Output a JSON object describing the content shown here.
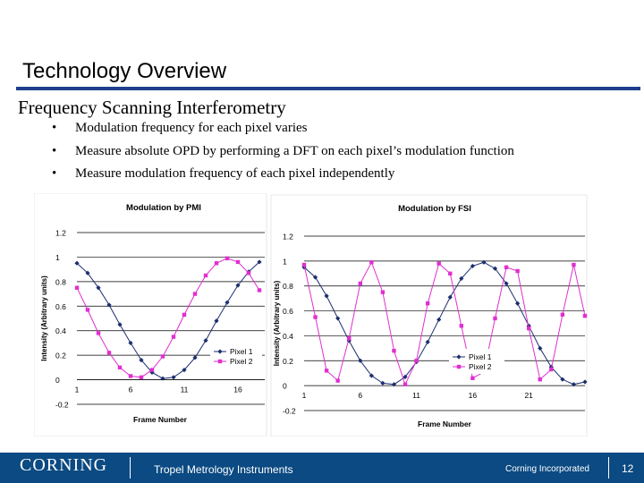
{
  "slide": {
    "title": "Technology Overview",
    "subtitle": "Frequency Scanning Interferometry",
    "bullets": [
      "Modulation frequency for each pixel varies",
      "Measure absolute OPD by performing a DFT on each pixel’s modulation function",
      "Measure modulation frequency of each pixel independently"
    ],
    "accent_color": "#1f3f8c",
    "footer_bg": "#0b4a82"
  },
  "footer": {
    "brand": "CORNING",
    "division": "Tropel Metrology Instruments",
    "company": "Corning Incorporated",
    "page_number": "12"
  },
  "chart_data": [
    {
      "type": "line",
      "title": "Modulation by PMI",
      "xlabel": "Frame Number",
      "ylabel": "Intensity (Arbitrary units)",
      "ylim": [
        -0.2,
        1.2
      ],
      "yticks": [
        "1.2",
        "1",
        "0.8",
        "0.6",
        "0.4",
        "0.2",
        "0",
        "-0.2"
      ],
      "xticks": [
        "1",
        "6",
        "11",
        "16"
      ],
      "xlim": [
        1,
        18.5
      ],
      "legend": "bottom-right",
      "series": [
        {
          "name": "Pixel 1",
          "color": "#1c2f6e",
          "marker": "diamond",
          "x": [
            1,
            2,
            3,
            4,
            5,
            6,
            7,
            8,
            9,
            10,
            11,
            12,
            13,
            14,
            15,
            16,
            17,
            18
          ],
          "y": [
            0.95,
            0.87,
            0.75,
            0.61,
            0.45,
            0.3,
            0.16,
            0.06,
            0.01,
            0.02,
            0.08,
            0.18,
            0.32,
            0.48,
            0.63,
            0.77,
            0.88,
            0.96
          ]
        },
        {
          "name": "Pixel 2",
          "color": "#e02fd0",
          "marker": "square",
          "x": [
            1,
            2,
            3,
            4,
            5,
            6,
            7,
            8,
            9,
            10,
            11,
            12,
            13,
            14,
            15,
            16,
            17,
            18
          ],
          "y": [
            0.75,
            0.57,
            0.38,
            0.22,
            0.1,
            0.03,
            0.02,
            0.08,
            0.19,
            0.35,
            0.53,
            0.7,
            0.85,
            0.95,
            0.99,
            0.96,
            0.87,
            0.73
          ]
        }
      ]
    },
    {
      "type": "line",
      "title": "Modulation by FSI",
      "xlabel": "Frame Number",
      "ylabel": "Intensity (Arbitrary units)",
      "ylim": [
        -0.2,
        1.2
      ],
      "yticks": [
        "1.2",
        "1",
        "0.8",
        "0.6",
        "0.4",
        "0.2",
        "0",
        "-0.2"
      ],
      "xticks": [
        "1",
        "6",
        "11",
        "16",
        "21"
      ],
      "xlim": [
        1,
        26
      ],
      "legend": "bottom-right",
      "series": [
        {
          "name": "Pixel 1",
          "color": "#1c2f6e",
          "marker": "diamond",
          "x": [
            1,
            2,
            3,
            4,
            5,
            6,
            7,
            8,
            9,
            10,
            11,
            12,
            13,
            14,
            15,
            16,
            17,
            18,
            19,
            20,
            21,
            22,
            23,
            24,
            25,
            26
          ],
          "y": [
            0.95,
            0.87,
            0.72,
            0.54,
            0.36,
            0.2,
            0.08,
            0.02,
            0.01,
            0.07,
            0.19,
            0.35,
            0.53,
            0.71,
            0.86,
            0.96,
            0.99,
            0.94,
            0.82,
            0.66,
            0.48,
            0.3,
            0.15,
            0.05,
            0.01,
            0.03
          ]
        },
        {
          "name": "Pixel 2",
          "color": "#e02fd0",
          "marker": "square",
          "x": [
            1,
            2,
            3,
            4,
            5,
            6,
            7,
            8,
            9,
            10,
            11,
            12,
            13,
            14,
            15,
            16,
            17,
            18,
            19,
            20,
            21,
            22,
            23,
            24,
            25,
            26
          ],
          "y": [
            0.97,
            0.55,
            0.12,
            0.04,
            0.38,
            0.82,
            0.99,
            0.75,
            0.28,
            0.01,
            0.2,
            0.66,
            0.98,
            0.9,
            0.48,
            0.06,
            0.11,
            0.54,
            0.95,
            0.92,
            0.46,
            0.05,
            0.13,
            0.57,
            0.97,
            0.56
          ]
        }
      ]
    }
  ]
}
